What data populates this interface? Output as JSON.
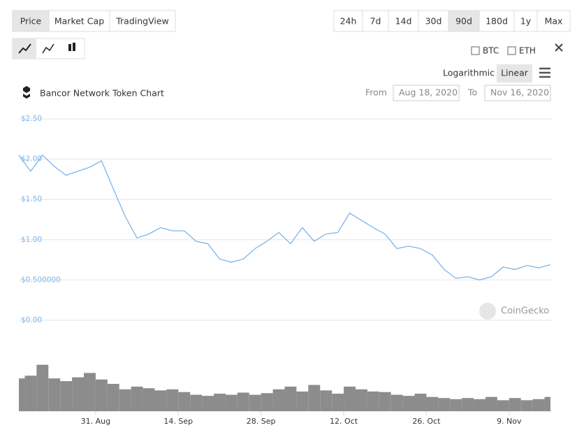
{
  "tabs": {
    "items": [
      "Price",
      "Market Cap",
      "TradingView"
    ],
    "active_index": 0
  },
  "ranges": {
    "items": [
      "24h",
      "7d",
      "14d",
      "30d",
      "90d",
      "180d",
      "1y",
      "Max"
    ],
    "active_index": 4
  },
  "compare": [
    "BTC",
    "ETH"
  ],
  "scale_options": {
    "items": [
      "Logarithmic",
      "Linear"
    ],
    "active_index": 1
  },
  "header": {
    "title": "Bancor Network Token Chart",
    "from_label": "From",
    "from_value": "Aug 18, 2020",
    "to_label": "To",
    "to_value": "Nov 16, 2020"
  },
  "watermark": "CoinGecko",
  "chart_data": {
    "type": "line",
    "x": [
      "Aug 18",
      "Aug 20",
      "Aug 22",
      "Aug 24",
      "Aug 26",
      "Aug 28",
      "Aug 30",
      "Sep 1",
      "Sep 3",
      "Sep 5",
      "Sep 7",
      "Sep 9",
      "Sep 11",
      "Sep 13",
      "Sep 15",
      "Sep 17",
      "Sep 19",
      "Sep 21",
      "Sep 23",
      "Sep 25",
      "Sep 27",
      "Sep 29",
      "Oct 1",
      "Oct 3",
      "Oct 5",
      "Oct 7",
      "Oct 9",
      "Oct 11",
      "Oct 13",
      "Oct 15",
      "Oct 17",
      "Oct 19",
      "Oct 21",
      "Oct 23",
      "Oct 25",
      "Oct 27",
      "Oct 29",
      "Oct 31",
      "Nov 2",
      "Nov 4",
      "Nov 6",
      "Nov 8",
      "Nov 10",
      "Nov 12",
      "Nov 14",
      "Nov 16"
    ],
    "series": [
      {
        "name": "Price",
        "color": "#7cb5ec",
        "values": [
          2.05,
          1.85,
          2.05,
          1.91,
          1.8,
          1.85,
          1.9,
          1.98,
          1.63,
          1.29,
          1.02,
          1.07,
          1.15,
          1.11,
          1.11,
          0.98,
          0.95,
          0.76,
          0.72,
          0.76,
          0.89,
          0.98,
          1.09,
          0.95,
          1.15,
          0.98,
          1.07,
          1.09,
          1.33,
          1.24,
          1.15,
          1.07,
          0.89,
          0.92,
          0.89,
          0.81,
          0.63,
          0.52,
          0.54,
          0.5,
          0.54,
          0.66,
          0.63,
          0.68,
          0.65,
          0.69
        ]
      },
      {
        "name": "Volume",
        "color": "#8c8c8c",
        "axis": "y2",
        "values": [
          60,
          65,
          85,
          60,
          55,
          62,
          70,
          58,
          50,
          40,
          45,
          42,
          38,
          40,
          35,
          30,
          28,
          32,
          30,
          34,
          30,
          33,
          40,
          45,
          36,
          48,
          38,
          32,
          45,
          40,
          36,
          35,
          30,
          28,
          32,
          26,
          24,
          22,
          24,
          22,
          26,
          20,
          24,
          20,
          22,
          26
        ]
      }
    ],
    "ylim": [
      0,
      2.5
    ],
    "yticks": [
      {
        "value": 0,
        "label": "$0.00"
      },
      {
        "value": 0.5,
        "label": "$0.500000"
      },
      {
        "value": 1,
        "label": "$1.00"
      },
      {
        "value": 1.5,
        "label": "$1.50"
      },
      {
        "value": 2,
        "label": "$2.00"
      },
      {
        "value": 2.5,
        "label": "$2.50"
      }
    ],
    "y2lim": [
      0,
      100
    ],
    "xticks": [
      {
        "value": "Aug 31",
        "label": "31. Aug"
      },
      {
        "value": "Sep 14",
        "label": "14. Sep"
      },
      {
        "value": "Sep 28",
        "label": "28. Sep"
      },
      {
        "value": "Oct 12",
        "label": "12. Oct"
      },
      {
        "value": "Oct 26",
        "label": "26. Oct"
      },
      {
        "value": "Nov 9",
        "label": "9. Nov"
      }
    ],
    "grid": true
  }
}
